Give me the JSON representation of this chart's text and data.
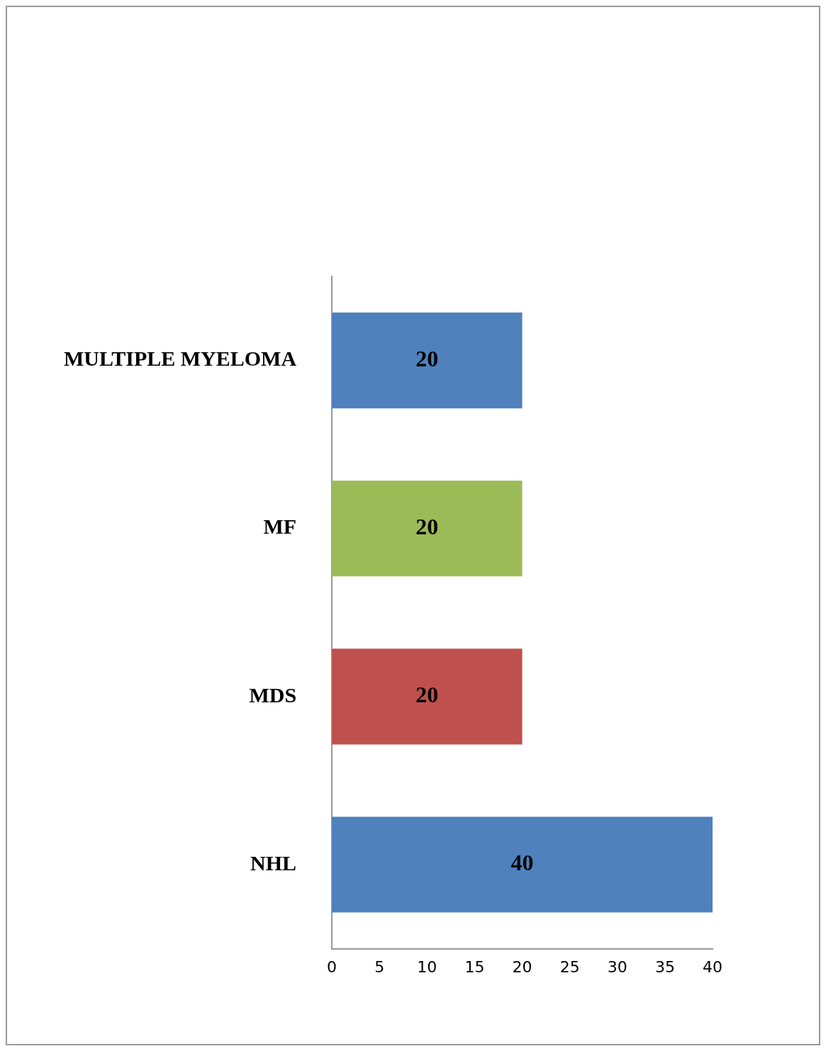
{
  "chart_data": {
    "type": "bar",
    "orientation": "horizontal",
    "categories": [
      "MULTIPLE MYELOMA",
      "MF",
      "MDS",
      "NHL"
    ],
    "values": [
      20,
      20,
      20,
      40
    ],
    "colors": [
      "#4f81bd",
      "#9bbb59",
      "#c0504d",
      "#4f81bd"
    ],
    "xlim": [
      0,
      40
    ],
    "xticks": [
      0,
      5,
      10,
      15,
      20,
      25,
      30,
      35,
      40
    ],
    "data_labels": true,
    "grid": false,
    "legend": false
  }
}
